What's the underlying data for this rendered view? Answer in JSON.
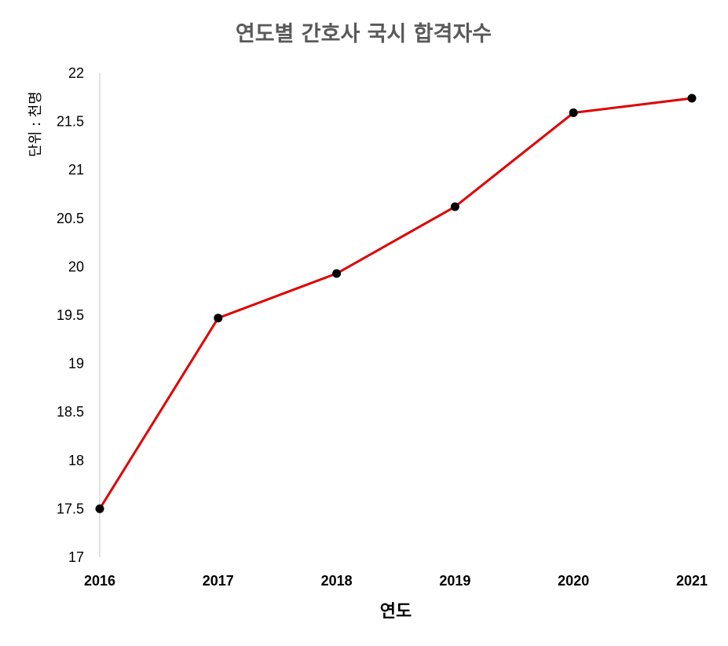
{
  "chart_data": {
    "type": "line",
    "title": "연도별 간호사 국시 합격자수",
    "xlabel": "연도",
    "ylabel": "단위 : 천명",
    "categories": [
      "2016",
      "2017",
      "2018",
      "2019",
      "2020",
      "2021"
    ],
    "series": [
      {
        "values": [
          17.5,
          19.47,
          19.93,
          20.62,
          21.59,
          21.74
        ]
      }
    ],
    "ylim": [
      17,
      22
    ],
    "yticks": [
      "17",
      "17.5",
      "18",
      "18.5",
      "19",
      "19.5",
      "20",
      "20.5",
      "21",
      "21.5",
      "22"
    ],
    "grid": false,
    "line_color": "#e00000",
    "marker_color": "#000000"
  }
}
